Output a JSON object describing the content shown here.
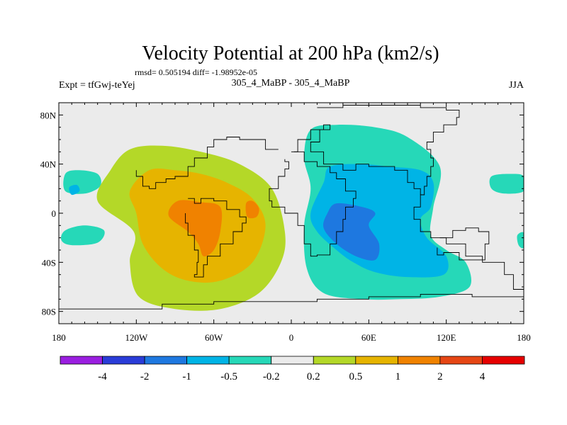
{
  "chart_data": {
    "type": "heatmap",
    "title": "Velocity Potential at 200 hPa (km2/s)",
    "stats_text": "rmsd= 0.505194 diff= -1.98952e-05",
    "left_label": "Expt = tfGwj-teYej",
    "center_label": "305_4_MaBP - 305_4_MaBP",
    "right_label": "JJA",
    "x_ticks": [
      {
        "value": -180,
        "label": "180"
      },
      {
        "value": -120,
        "label": "120W"
      },
      {
        "value": -60,
        "label": "60W"
      },
      {
        "value": 0,
        "label": "0"
      },
      {
        "value": 60,
        "label": "60E"
      },
      {
        "value": 120,
        "label": "120E"
      },
      {
        "value": 180,
        "label": "180"
      }
    ],
    "y_ticks": [
      {
        "value": 80,
        "label": "80N"
      },
      {
        "value": 40,
        "label": "40N"
      },
      {
        "value": 0,
        "label": "0"
      },
      {
        "value": -40,
        "label": "40S"
      },
      {
        "value": -80,
        "label": "80S"
      }
    ],
    "xlim": [
      -180,
      180
    ],
    "ylim": [
      -90,
      90
    ],
    "colorbar": {
      "colors": [
        "#9a1ee0",
        "#2a3cd8",
        "#1e78e0",
        "#00b4e6",
        "#26d8b8",
        "#ebebeb",
        "#b4d828",
        "#e6b400",
        "#f08200",
        "#e64614",
        "#e60000"
      ],
      "labels": [
        "-4",
        "-2",
        "-1",
        "-0.5",
        "-0.2",
        "0.2",
        "0.5",
        "1",
        "2",
        "4"
      ]
    },
    "fields": [
      {
        "level": "-0.2",
        "color": "#26d8b8",
        "points": [
          [
            15,
            68
          ],
          [
            35,
            72
          ],
          [
            65,
            70
          ],
          [
            90,
            62
          ],
          [
            115,
            38
          ],
          [
            110,
            5
          ],
          [
            108,
            -18
          ],
          [
            120,
            -30
          ],
          [
            135,
            -40
          ],
          [
            138,
            -60
          ],
          [
            115,
            -68
          ],
          [
            85,
            -70
          ],
          [
            55,
            -70
          ],
          [
            25,
            -65
          ],
          [
            12,
            -45
          ],
          [
            10,
            -10
          ],
          [
            15,
            20
          ],
          [
            10,
            45
          ]
        ]
      },
      {
        "level": "-0.5",
        "color": "#00b4e6",
        "points": [
          [
            30,
            38
          ],
          [
            55,
            40
          ],
          [
            75,
            38
          ],
          [
            100,
            35
          ],
          [
            110,
            25
          ],
          [
            108,
            5
          ],
          [
            100,
            -5
          ],
          [
            105,
            -20
          ],
          [
            120,
            -35
          ],
          [
            118,
            -50
          ],
          [
            90,
            -52
          ],
          [
            65,
            -48
          ],
          [
            48,
            -40
          ],
          [
            35,
            -30
          ],
          [
            20,
            -15
          ],
          [
            15,
            0
          ],
          [
            25,
            25
          ]
        ]
      },
      {
        "level": "-1",
        "color": "#1e78e0",
        "points": [
          [
            35,
            8
          ],
          [
            55,
            5
          ],
          [
            65,
            0
          ],
          [
            60,
            -10
          ],
          [
            68,
            -25
          ],
          [
            65,
            -38
          ],
          [
            50,
            -35
          ],
          [
            35,
            -25
          ],
          [
            25,
            -12
          ],
          [
            28,
            0
          ]
        ]
      },
      {
        "level": "-0.2",
        "color": "#26d8b8",
        "points": [
          [
            -175,
            32
          ],
          [
            -165,
            35
          ],
          [
            -150,
            32
          ],
          [
            -148,
            22
          ],
          [
            -160,
            16
          ],
          [
            -175,
            18
          ]
        ]
      },
      {
        "level": "-0.5",
        "color": "#00b4e6",
        "points": [
          [
            -172,
            21
          ],
          [
            -166,
            23
          ],
          [
            -164,
            18
          ],
          [
            -170,
            15
          ]
        ]
      },
      {
        "level": "-0.2",
        "color": "#26d8b8",
        "points": [
          [
            -175,
            -14
          ],
          [
            -160,
            -10
          ],
          [
            -145,
            -14
          ],
          [
            -150,
            -24
          ],
          [
            -170,
            -26
          ],
          [
            -178,
            -22
          ]
        ]
      },
      {
        "level": "-0.2",
        "color": "#26d8b8",
        "points": [
          [
            155,
            30
          ],
          [
            170,
            32
          ],
          [
            180,
            30
          ],
          [
            180,
            18
          ],
          [
            165,
            16
          ],
          [
            155,
            20
          ]
        ]
      },
      {
        "level": "-0.2",
        "color": "#26d8b8",
        "points": [
          [
            175,
            -18
          ],
          [
            180,
            -16
          ],
          [
            180,
            -28
          ],
          [
            176,
            -26
          ]
        ]
      },
      {
        "level": "0.2",
        "color": "#b4d828",
        "points": [
          [
            -140,
            35
          ],
          [
            -125,
            52
          ],
          [
            -100,
            55
          ],
          [
            -70,
            50
          ],
          [
            -40,
            40
          ],
          [
            -15,
            20
          ],
          [
            -5,
            -15
          ],
          [
            -8,
            -40
          ],
          [
            -25,
            -65
          ],
          [
            -55,
            -78
          ],
          [
            -90,
            -78
          ],
          [
            -118,
            -68
          ],
          [
            -125,
            -40
          ],
          [
            -122,
            -15
          ],
          [
            -150,
            10
          ]
        ]
      },
      {
        "level": "0.5",
        "color": "#e6b400",
        "points": [
          [
            -125,
            18
          ],
          [
            -110,
            35
          ],
          [
            -90,
            35
          ],
          [
            -70,
            32
          ],
          [
            -50,
            25
          ],
          [
            -30,
            12
          ],
          [
            -20,
            -10
          ],
          [
            -30,
            -40
          ],
          [
            -55,
            -55
          ],
          [
            -80,
            -55
          ],
          [
            -100,
            -45
          ],
          [
            -115,
            -25
          ],
          [
            -120,
            0
          ]
        ]
      },
      {
        "level": "1",
        "color": "#f08200",
        "points": [
          [
            -88,
            10
          ],
          [
            -70,
            9
          ],
          [
            -55,
            5
          ],
          [
            -55,
            -15
          ],
          [
            -60,
            -30
          ],
          [
            -68,
            -35
          ],
          [
            -72,
            -25
          ],
          [
            -80,
            -15
          ],
          [
            -95,
            -2
          ]
        ]
      },
      {
        "level": "1",
        "color": "#f08200",
        "points": [
          [
            -35,
            8
          ],
          [
            -30,
            10
          ],
          [
            -25,
            4
          ],
          [
            -27,
            -3
          ],
          [
            -34,
            -3
          ]
        ]
      }
    ],
    "coastlines": [
      [
        [
          20,
          86
        ],
        [
          40,
          88
        ],
        [
          70,
          88
        ],
        [
          100,
          86
        ],
        [
          120,
          84
        ],
        [
          130,
          78
        ],
        [
          128,
          72
        ],
        [
          118,
          66
        ],
        [
          110,
          58
        ],
        [
          105,
          52
        ],
        [
          108,
          45
        ],
        [
          110,
          38
        ],
        [
          108,
          30
        ],
        [
          105,
          22
        ],
        [
          103,
          15
        ],
        [
          100,
          5
        ],
        [
          95,
          -5
        ],
        [
          100,
          -15
        ],
        [
          108,
          -20
        ],
        [
          120,
          -25
        ],
        [
          135,
          -35
        ],
        [
          148,
          -40
        ],
        [
          165,
          -50
        ],
        [
          172,
          -62
        ],
        [
          180,
          -72
        ]
      ],
      [
        [
          0,
          50
        ],
        [
          5,
          60
        ],
        [
          15,
          68
        ],
        [
          25,
          72
        ],
        [
          30,
          68
        ],
        [
          22,
          58
        ],
        [
          15,
          50
        ],
        [
          25,
          40
        ],
        [
          40,
          35
        ],
        [
          50,
          40
        ],
        [
          60,
          38
        ],
        [
          80,
          35
        ],
        [
          90,
          25
        ],
        [
          95,
          20
        ],
        [
          100,
          15
        ]
      ],
      [
        [
          2,
          50
        ],
        [
          10,
          42
        ],
        [
          20,
          38
        ],
        [
          30,
          33
        ],
        [
          35,
          28
        ],
        [
          42,
          18
        ],
        [
          50,
          12
        ],
        [
          48,
          5
        ],
        [
          42,
          -5
        ],
        [
          40,
          -15
        ],
        [
          35,
          -25
        ],
        [
          30,
          -34
        ],
        [
          20,
          -35
        ],
        [
          15,
          -25
        ],
        [
          10,
          -10
        ],
        [
          5,
          0
        ],
        [
          -5,
          5
        ],
        [
          -15,
          10
        ],
        [
          -17,
          20
        ],
        [
          -10,
          30
        ],
        [
          -5,
          36
        ],
        [
          -2,
          42
        ],
        [
          -5,
          44
        ]
      ],
      [
        [
          -10,
          52
        ],
        [
          -20,
          60
        ],
        [
          -40,
          62
        ],
        [
          -50,
          60
        ],
        [
          -60,
          54
        ],
        [
          -65,
          45
        ],
        [
          -75,
          38
        ],
        [
          -80,
          30
        ],
        [
          -90,
          28
        ],
        [
          -97,
          25
        ],
        [
          -105,
          20
        ],
        [
          -110,
          22
        ],
        [
          -115,
          30
        ],
        [
          -120,
          35
        ]
      ],
      [
        [
          -80,
          12
        ],
        [
          -75,
          8
        ],
        [
          -70,
          12
        ],
        [
          -60,
          10
        ],
        [
          -50,
          3
        ],
        [
          -40,
          -3
        ],
        [
          -35,
          -8
        ],
        [
          -38,
          -15
        ],
        [
          -45,
          -25
        ],
        [
          -55,
          -35
        ],
        [
          -65,
          -42
        ],
        [
          -68,
          -52
        ],
        [
          -75,
          -50
        ],
        [
          -73,
          -40
        ],
        [
          -72,
          -30
        ],
        [
          -75,
          -18
        ],
        [
          -80,
          -8
        ],
        [
          -82,
          0
        ]
      ],
      [
        [
          -180,
          -78
        ],
        [
          -150,
          -78
        ],
        [
          -100,
          -74
        ],
        [
          -60,
          -72
        ],
        [
          -20,
          -72
        ],
        [
          20,
          -70
        ],
        [
          60,
          -68
        ],
        [
          100,
          -66
        ],
        [
          140,
          -68
        ],
        [
          180,
          -72
        ]
      ],
      [
        [
          115,
          -20
        ],
        [
          125,
          -14
        ],
        [
          135,
          -12
        ],
        [
          145,
          -15
        ],
        [
          153,
          -25
        ],
        [
          150,
          -38
        ],
        [
          140,
          -38
        ],
        [
          130,
          -32
        ],
        [
          118,
          -34
        ],
        [
          113,
          -28
        ]
      ]
    ]
  }
}
